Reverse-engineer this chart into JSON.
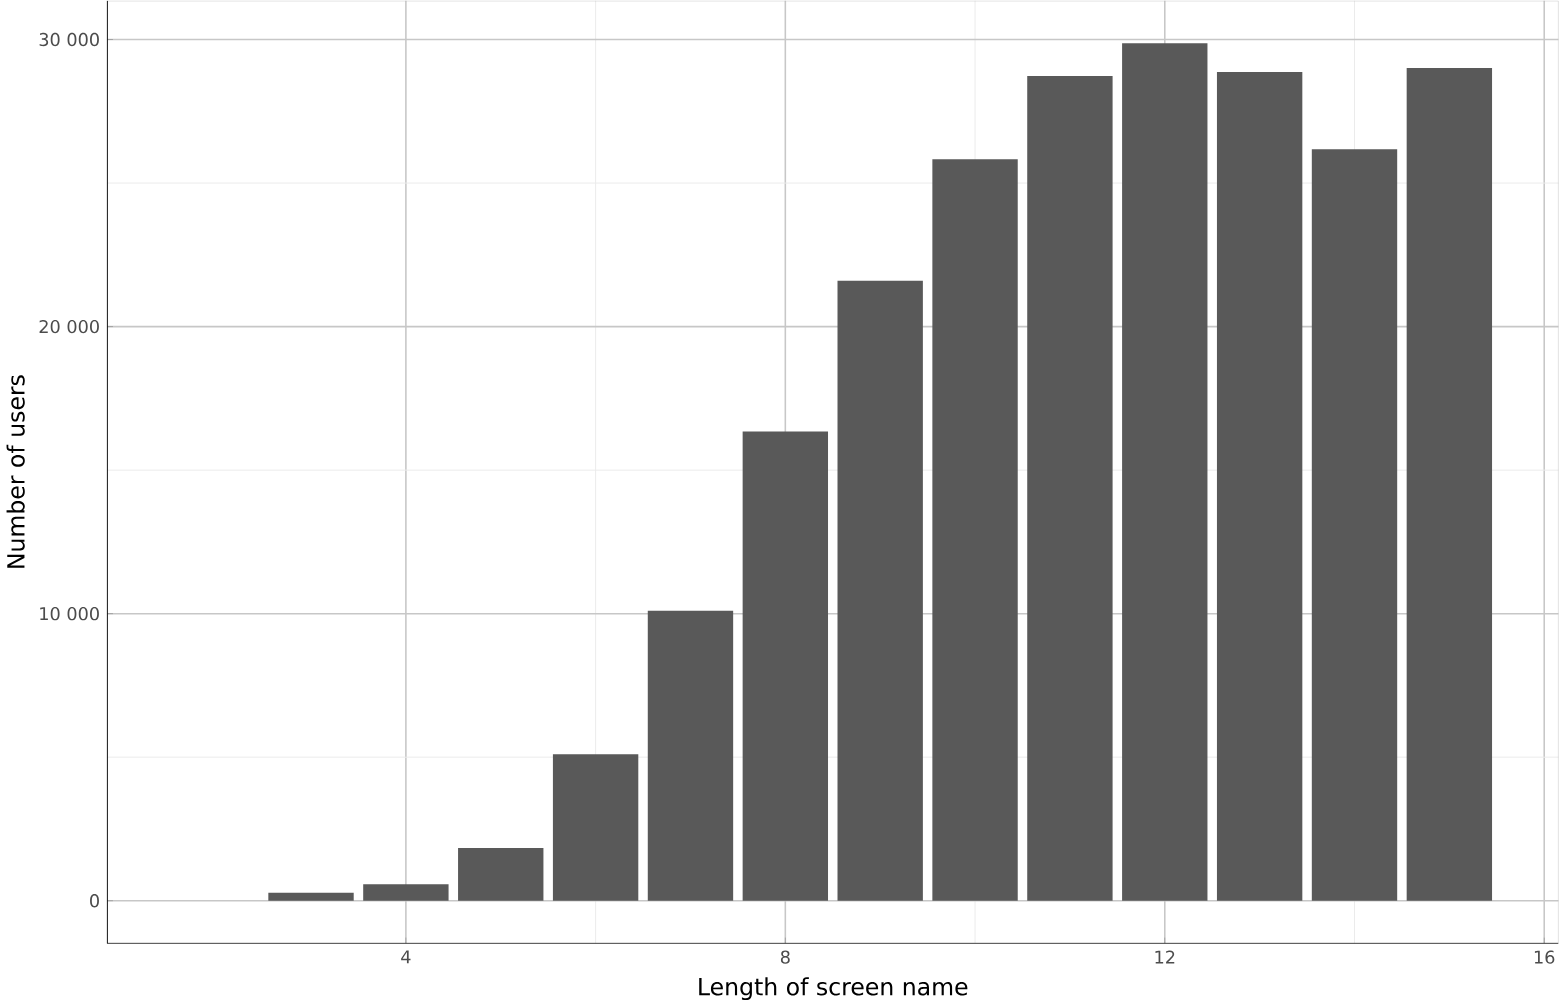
{
  "chart_data": {
    "type": "bar",
    "xlabel": "Length of screen name",
    "ylabel": "Number of users",
    "x": [
      3,
      4,
      5,
      6,
      7,
      8,
      9,
      10,
      11,
      12,
      13,
      14,
      15
    ],
    "values": [
      280,
      570,
      1840,
      5100,
      10100,
      16350,
      21600,
      25830,
      28730,
      29870,
      28870,
      26180,
      29010
    ],
    "color": "#595959",
    "xlim": [
      0.85,
      16.15
    ],
    "ylim": [
      -1490,
      31350
    ],
    "xticks": [
      4,
      8,
      12,
      16
    ],
    "yticks": [
      {
        "value": 0,
        "label": "0"
      },
      {
        "value": 10000,
        "label": "10 000"
      },
      {
        "value": 20000,
        "label": "20 000"
      },
      {
        "value": 30000,
        "label": "30 000"
      }
    ],
    "grid": true
  }
}
